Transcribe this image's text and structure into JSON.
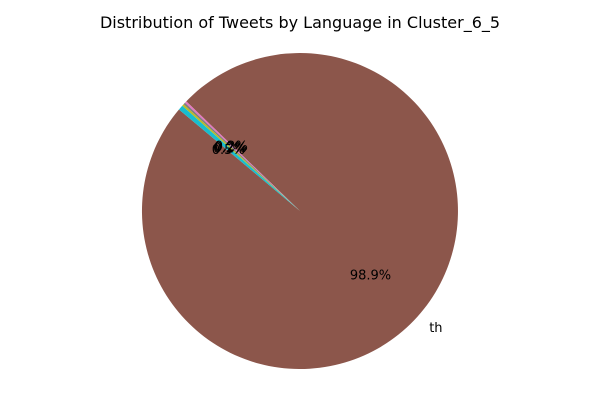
{
  "chart_data": {
    "type": "pie",
    "title": "Distribution of Tweets by Language in Cluster_6_5",
    "start_angle_deg": 140,
    "counterclock": true,
    "slices": [
      {
        "label": "th",
        "value": 98.9,
        "pct_label": "98.9%",
        "color": "#8c564b"
      },
      {
        "label": "",
        "value": 0.2,
        "pct_label": "0.2%",
        "color": "#e377c2"
      },
      {
        "label": "",
        "value": 0.2,
        "pct_label": "0.2%",
        "color": "#7f7f7f"
      },
      {
        "label": "",
        "value": 0.2,
        "pct_label": "0.2%",
        "color": "#bcbd22"
      },
      {
        "label": "",
        "value": 0.5,
        "pct_label": "0.5%",
        "color": "#17becf"
      }
    ]
  }
}
